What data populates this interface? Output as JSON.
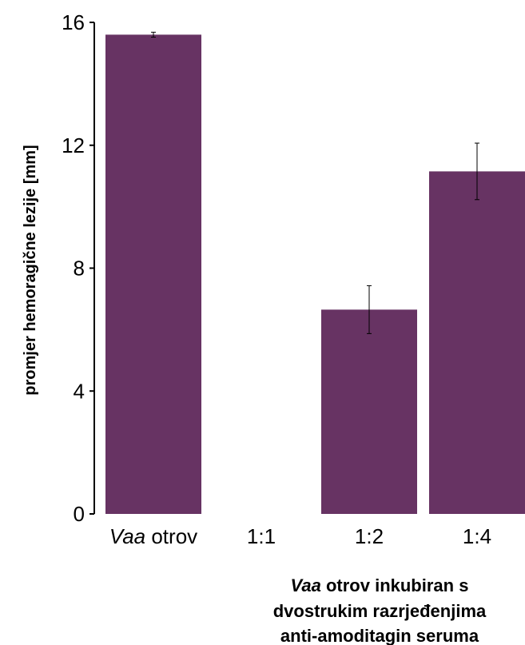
{
  "chart_data": {
    "type": "bar",
    "title": "",
    "ylabel": "promjer hemoragične lezije [mm]",
    "xlabel_lines": [
      {
        "italic": "Vaa",
        "rest": " otrov inkubiran s"
      },
      {
        "italic": "",
        "rest": "dvostrukim razrjeđenjima"
      },
      {
        "italic": "",
        "rest": "anti-amoditagin seruma"
      }
    ],
    "categories": [
      {
        "italic": "Vaa",
        "rest": " otrov"
      },
      {
        "italic": "",
        "rest": "1:1"
      },
      {
        "italic": "",
        "rest": "1:2"
      },
      {
        "italic": "",
        "rest": "1:4"
      }
    ],
    "values": [
      15.6,
      0,
      6.65,
      11.15
    ],
    "errors": [
      0.08,
      0,
      0.78,
      0.92
    ],
    "ylim": [
      0,
      16
    ],
    "yticks": [
      0,
      4,
      8,
      12,
      16
    ],
    "grid": false,
    "legend": "none",
    "bar_color": "#673363",
    "axis_color": "#000000"
  }
}
